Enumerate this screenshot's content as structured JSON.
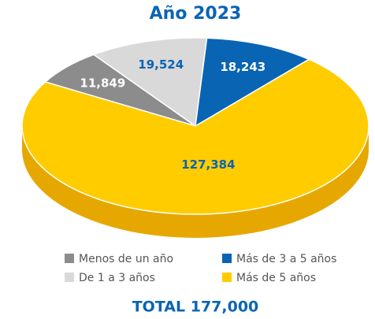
{
  "chart_data": {
    "type": "pie3d",
    "title": "Año 2023",
    "categories": [
      "Menos de un año",
      "De 1 a 3 años",
      "Más de 3 a 5 años",
      "Más de 5 años"
    ],
    "values": [
      11849,
      19524,
      18243,
      127384
    ],
    "value_labels": [
      "11,849",
      "19,524",
      "18,243",
      "127,384"
    ],
    "colors": [
      "#8c8c8c",
      "#d9d9d9",
      "#0a64b4",
      "#ffcc00"
    ],
    "side_colors": [
      "#6e6e6e",
      "#b5b5b5",
      "#07508f",
      "#e6a800"
    ],
    "label_colors": [
      "#ffffff",
      "#0a64b4",
      "#ffffff",
      "#0a64b4"
    ],
    "footer": "TOTAL 177,000"
  }
}
